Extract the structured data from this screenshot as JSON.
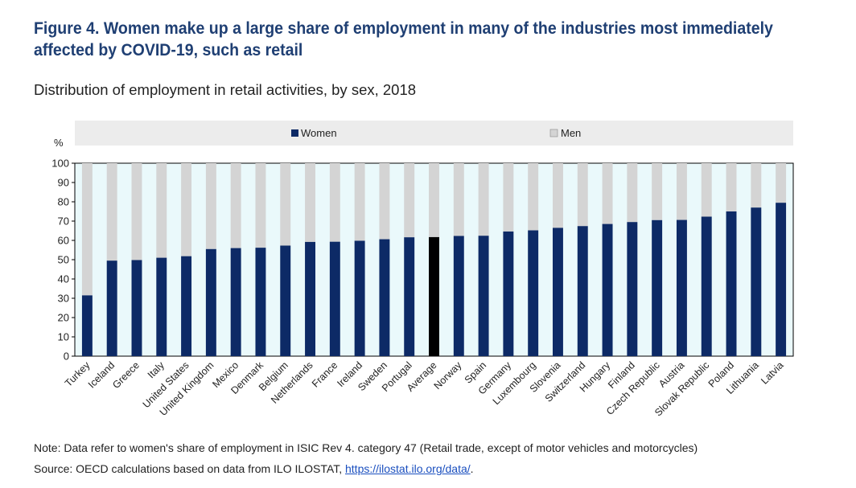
{
  "figure": {
    "title": "Figure 4. Women make up a large share of employment in many of the industries most immediately affected by COVID-19, such as retail",
    "subtitle": "Distribution of employment in retail activities, by sex, 2018",
    "note": "Note: Data refer to women's share of employment in ISIC Rev 4. category 47 (Retail trade, except of motor vehicles and motorcycles)",
    "source_prefix": "Source: OECD calculations based on data from ILO ILOSTAT, ",
    "source_link": "https://ilostat.ilo.org/data/",
    "source_suffix": "."
  },
  "chart_data": {
    "type": "bar",
    "stacked": true,
    "ylabel": "%",
    "ylim": [
      0,
      100
    ],
    "yticks": [
      0,
      10,
      20,
      30,
      40,
      50,
      60,
      70,
      80,
      90,
      100
    ],
    "legend_position": "top",
    "categories": [
      "Turkey",
      "Iceland",
      "Greece",
      "Italy",
      "United States",
      "United Kingdom",
      "Mexico",
      "Denmark",
      "Belgium",
      "Netherlands",
      "France",
      "Ireland",
      "Sweden",
      "Portugal",
      "Average",
      "Norway",
      "Spain",
      "Germany",
      "Luxembourg",
      "Slovenia",
      "Switzerland",
      "Hungary",
      "Finland",
      "Czech Republic",
      "Austria",
      "Slovak Republic",
      "Poland",
      "Lithuania",
      "Latvia"
    ],
    "highlight_category": "Average",
    "series": [
      {
        "name": "Women",
        "color": "#0d2a66",
        "values": [
          31.5,
          49.5,
          49.8,
          51,
          51.8,
          55.5,
          56,
          56.2,
          57.3,
          59.2,
          59.3,
          59.8,
          60.6,
          61.6,
          61.7,
          62.3,
          62.4,
          64.6,
          65.2,
          66.5,
          67.4,
          68.5,
          69.5,
          70.5,
          70.6,
          72.3,
          75,
          77,
          79.5
        ]
      },
      {
        "name": "Men",
        "color": "#d4d4d4",
        "values": [
          68.5,
          50.5,
          50.2,
          49,
          48.2,
          44.5,
          44,
          43.8,
          42.7,
          40.8,
          40.7,
          40.2,
          39.4,
          38.4,
          38.3,
          37.7,
          37.6,
          35.4,
          34.8,
          33.5,
          32.6,
          31.5,
          30.5,
          29.5,
          29.4,
          27.7,
          25,
          23,
          20.5
        ]
      }
    ],
    "highlight_color": "#000000",
    "plot_background": "#eaf9fb",
    "legend_background": "#ececec"
  }
}
